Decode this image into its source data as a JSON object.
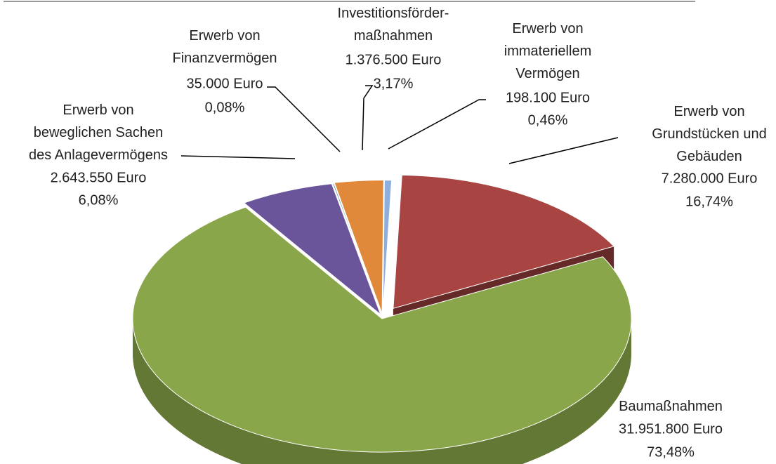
{
  "chart_data": {
    "type": "pie",
    "categories": [
      "Erwerb von\nGrundstücken und\nGebäuden",
      "Baumaßnahmen",
      "Erwerb von\nbeweglichen Sachen\ndes Anlagevermögens",
      "Erwerb von\nFinanzvermögen",
      "Investitionsförder-\nmaßnahmen",
      "Erwerb von\nimmateriellem\nVermögen"
    ],
    "values": [
      7280000,
      31951800,
      2643550,
      35000,
      1376500,
      198100
    ],
    "value_labels": [
      "7.280.000 Euro",
      "31.951.800 Euro",
      "2.643.550 Euro",
      "35.000 Euro",
      "1.376.500 Euro",
      "198.100 Euro"
    ],
    "percentages": [
      16.74,
      73.48,
      6.08,
      0.08,
      3.17,
      0.46
    ],
    "percentage_labels": [
      "16,74%",
      "73,48%",
      "6,08%",
      "0,08%",
      "3,17%",
      "0,46%"
    ],
    "colors": [
      "#a84442",
      "#8aa64a",
      "#6b559a",
      "#2f8595",
      "#e0893a",
      "#8eaede"
    ],
    "three_d": true
  }
}
